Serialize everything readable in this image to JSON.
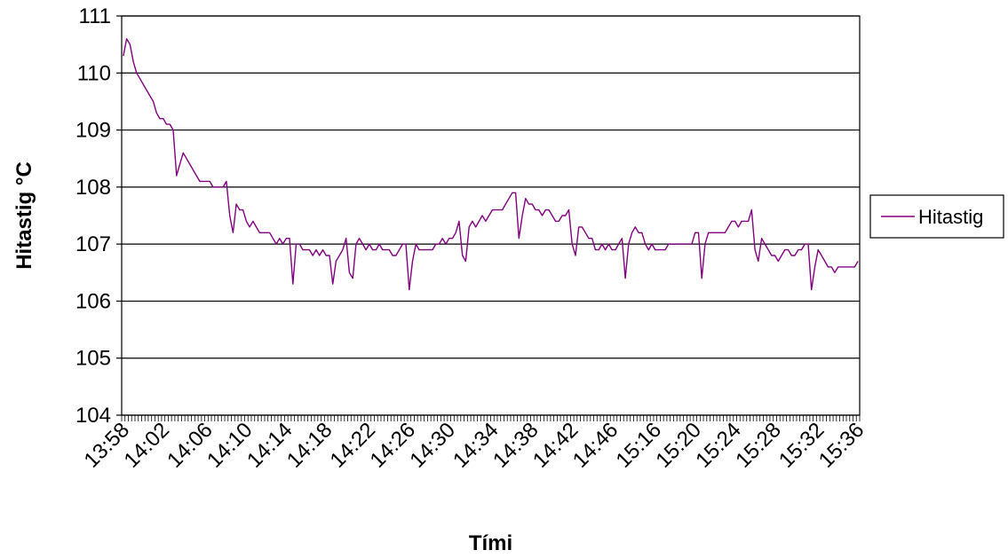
{
  "chart_data": {
    "type": "line",
    "xlabel": "Tími",
    "ylabel": "Hitastig °C",
    "ylim": [
      104,
      111
    ],
    "yticks": [
      104,
      105,
      106,
      107,
      108,
      109,
      110,
      111
    ],
    "grid": "horizontal",
    "legend_position": "right",
    "xtick_labels": [
      "13:58",
      "14:02",
      "14:06",
      "14:10",
      "14:14",
      "14:18",
      "14:22",
      "14:26",
      "14:30",
      "14:34",
      "14:38",
      "14:42",
      "14:46",
      "15:16",
      "15:20",
      "15:24",
      "15:28",
      "15:32",
      "15:36"
    ],
    "series": [
      {
        "name": "Hitastig",
        "color": "#800080",
        "values": [
          110.3,
          110.6,
          110.5,
          110.2,
          110.0,
          109.9,
          109.8,
          109.7,
          109.6,
          109.5,
          109.3,
          109.2,
          109.2,
          109.1,
          109.1,
          109.0,
          108.2,
          108.4,
          108.6,
          108.5,
          108.4,
          108.3,
          108.2,
          108.1,
          108.1,
          108.1,
          108.1,
          108.0,
          108.0,
          108.0,
          108.0,
          108.1,
          107.5,
          107.2,
          107.7,
          107.6,
          107.6,
          107.4,
          107.3,
          107.4,
          107.3,
          107.2,
          107.2,
          107.2,
          107.2,
          107.1,
          107.0,
          107.1,
          107.0,
          107.1,
          107.1,
          106.3,
          107.0,
          107.0,
          106.9,
          106.9,
          106.9,
          106.8,
          106.9,
          106.8,
          106.9,
          106.8,
          106.8,
          106.3,
          106.7,
          106.8,
          106.9,
          107.1,
          106.5,
          106.4,
          107.0,
          107.1,
          107.0,
          106.9,
          107.0,
          106.9,
          106.9,
          107.0,
          106.9,
          106.9,
          106.9,
          106.8,
          106.8,
          106.9,
          107.0,
          107.0,
          106.2,
          106.7,
          107.0,
          106.9,
          106.9,
          106.9,
          106.9,
          106.9,
          107.0,
          107.0,
          107.1,
          107.0,
          107.1,
          107.1,
          107.2,
          107.4,
          106.8,
          106.7,
          107.3,
          107.4,
          107.3,
          107.4,
          107.5,
          107.4,
          107.5,
          107.6,
          107.6,
          107.6,
          107.6,
          107.7,
          107.8,
          107.9,
          107.9,
          107.1,
          107.5,
          107.8,
          107.7,
          107.7,
          107.6,
          107.6,
          107.5,
          107.6,
          107.6,
          107.5,
          107.4,
          107.4,
          107.5,
          107.5,
          107.6,
          107.0,
          106.8,
          107.3,
          107.3,
          107.2,
          107.1,
          107.1,
          106.9,
          106.9,
          107.0,
          106.9,
          107.0,
          106.9,
          106.9,
          107.0,
          107.1,
          106.4,
          107.0,
          107.2,
          107.3,
          107.2,
          107.2,
          107.0,
          106.9,
          107.0,
          106.9,
          106.9,
          106.9,
          106.9,
          107.0,
          107.0,
          107.0,
          107.0,
          107.0,
          107.0,
          107.0,
          107.0,
          107.2,
          107.2,
          106.4,
          107.0,
          107.2,
          107.2,
          107.2,
          107.2,
          107.2,
          107.2,
          107.3,
          107.4,
          107.4,
          107.3,
          107.4,
          107.4,
          107.4,
          107.6,
          106.9,
          106.7,
          107.1,
          107.0,
          106.9,
          106.8,
          106.8,
          106.7,
          106.8,
          106.9,
          106.9,
          106.8,
          106.8,
          106.9,
          106.9,
          107.0,
          107.0,
          106.2,
          106.6,
          106.9,
          106.8,
          106.7,
          106.6,
          106.6,
          106.5,
          106.6,
          106.6,
          106.6,
          106.6,
          106.6,
          106.6,
          106.7
        ]
      }
    ]
  }
}
